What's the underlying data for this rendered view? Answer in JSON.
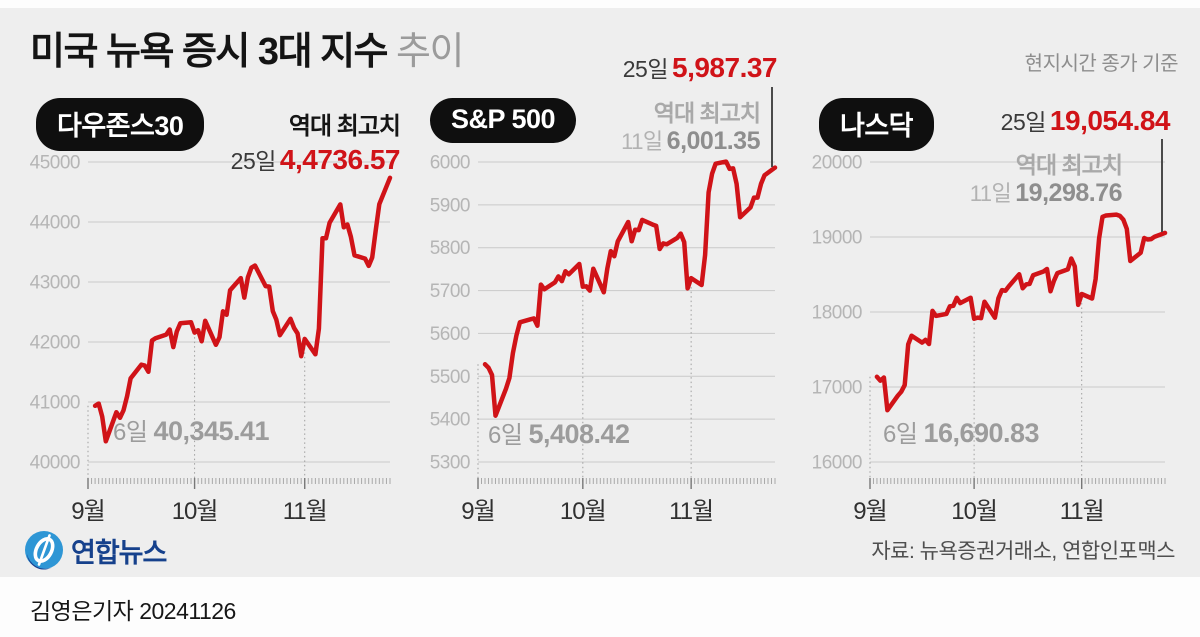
{
  "header": {
    "title_main": "미국 뉴욕 증시 3대 지수",
    "title_sub": "추이",
    "note": "현지시간 종가 기준"
  },
  "footer": {
    "logo_text": "연합뉴스",
    "source": "자료: 뉴욕증권거래소, 연합인포맥스",
    "byline": "김영은기자 20241126"
  },
  "colors": {
    "accent_red": "#d01318",
    "panel_bg": "#eeeeee",
    "grid_line": "#c9c9c9",
    "dotted_line": "#9f9f9f",
    "axis_label": "#b5b5b5",
    "month_label": "#303030",
    "logo_blue": "#2e96d5",
    "logo_navy": "#1b3e8f"
  },
  "chart_data": [
    {
      "type": "line",
      "name": "dow-jones-30",
      "label": "다우존스30",
      "ylim": [
        40000,
        45000
      ],
      "y_ticks": [
        45000,
        44000,
        43000,
        42000,
        41000,
        40000
      ],
      "x_axis": {
        "labels": [
          "9월",
          "10월",
          "11월"
        ],
        "label_days": [
          0,
          30,
          61
        ],
        "domain_days": [
          0,
          85
        ]
      },
      "days": [
        2,
        3,
        4,
        5,
        8,
        9,
        10,
        11,
        12,
        15,
        16,
        17,
        18,
        19,
        22,
        23,
        24,
        25,
        26,
        29,
        30,
        31,
        32,
        33,
        36,
        37,
        38,
        39,
        40,
        43,
        44,
        45,
        46,
        47,
        50,
        51,
        52,
        53,
        54,
        57,
        58,
        59,
        60,
        61,
        64,
        65,
        66,
        67,
        68,
        71,
        72,
        73,
        74,
        75,
        78,
        79,
        80,
        81,
        82,
        85
      ],
      "values": [
        40937,
        40974,
        40756,
        40345,
        40830,
        40737,
        40861,
        41097,
        41394,
        41622,
        41606,
        41503,
        42025,
        42063,
        42124,
        42208,
        41915,
        42175,
        42313,
        42330,
        42157,
        42197,
        42012,
        42353,
        41954,
        42080,
        42512,
        42454,
        42864,
        43065,
        42740,
        43078,
        43239,
        43275,
        42932,
        42924,
        42515,
        42374,
        42114,
        42387,
        42233,
        42142,
        41763,
        42052,
        41795,
        42222,
        43730,
        43729,
        43989,
        44294,
        43911,
        43958,
        43751,
        43445,
        43390,
        43269,
        43408,
        43870,
        44297,
        44737
      ],
      "annotations": {
        "latest_label": "역대 최고치",
        "latest": {
          "prefix": "25일",
          "value": "4,4736.57"
        },
        "low": {
          "prefix": "6일",
          "value": "40,345.41"
        }
      }
    },
    {
      "type": "line",
      "name": "sp-500",
      "label": "S&P 500",
      "ylim": [
        5300,
        6000
      ],
      "y_ticks": [
        6000,
        5900,
        5800,
        5700,
        5600,
        5500,
        5400,
        5300
      ],
      "x_axis": {
        "labels": [
          "9월",
          "10월",
          "11월"
        ],
        "label_days": [
          0,
          30,
          61
        ],
        "domain_days": [
          0,
          85
        ]
      },
      "days": [
        2,
        3,
        4,
        5,
        8,
        9,
        10,
        11,
        12,
        15,
        16,
        17,
        18,
        19,
        22,
        23,
        24,
        25,
        26,
        29,
        30,
        31,
        32,
        33,
        36,
        37,
        38,
        39,
        40,
        43,
        44,
        45,
        46,
        47,
        50,
        51,
        52,
        53,
        54,
        57,
        58,
        59,
        60,
        61,
        64,
        65,
        66,
        67,
        68,
        71,
        72,
        73,
        74,
        75,
        78,
        79,
        80,
        81,
        82,
        85
      ],
      "values": [
        5528,
        5520,
        5503,
        5408,
        5471,
        5496,
        5554,
        5595,
        5626,
        5633,
        5635,
        5618,
        5714,
        5703,
        5719,
        5733,
        5722,
        5745,
        5738,
        5762,
        5709,
        5710,
        5700,
        5751,
        5696,
        5751,
        5792,
        5780,
        5815,
        5860,
        5815,
        5842,
        5841,
        5865,
        5854,
        5851,
        5797,
        5810,
        5808,
        5823,
        5833,
        5813,
        5705,
        5729,
        5713,
        5783,
        5929,
        5973,
        5996,
        6001,
        5984,
        5985,
        5949,
        5871,
        5894,
        5917,
        5917,
        5949,
        5969,
        5987
      ],
      "annotations": {
        "latest": {
          "prefix": "25일",
          "value": "5,987.37"
        },
        "record": {
          "label": "역대 최고치",
          "prefix": "11일",
          "value": "6,001.35"
        },
        "low": {
          "prefix": "6일",
          "value": "5,408.42"
        }
      }
    },
    {
      "type": "line",
      "name": "nasdaq",
      "label": "나스닥",
      "ylim": [
        16000,
        20000
      ],
      "y_ticks": [
        20000,
        19000,
        18000,
        17000,
        16000
      ],
      "x_axis": {
        "labels": [
          "9월",
          "10월",
          "11월"
        ],
        "label_days": [
          0,
          30,
          61
        ],
        "domain_days": [
          0,
          85
        ]
      },
      "days": [
        2,
        3,
        4,
        5,
        8,
        9,
        10,
        11,
        12,
        15,
        16,
        17,
        18,
        19,
        22,
        23,
        24,
        25,
        26,
        29,
        30,
        31,
        32,
        33,
        36,
        37,
        38,
        39,
        40,
        43,
        44,
        45,
        46,
        47,
        50,
        51,
        52,
        53,
        54,
        57,
        58,
        59,
        60,
        61,
        64,
        65,
        66,
        67,
        68,
        71,
        72,
        73,
        74,
        75,
        78,
        79,
        80,
        81,
        82,
        85
      ],
      "values": [
        17136,
        17084,
        17127,
        16691,
        16884,
        16936,
        17025,
        17570,
        17684,
        17592,
        17628,
        17573,
        18014,
        17948,
        17974,
        18074,
        18082,
        18190,
        18119,
        18189,
        17910,
        17925,
        17918,
        18138,
        17924,
        18182,
        18292,
        18282,
        18343,
        18503,
        18316,
        18368,
        18374,
        18490,
        18540,
        18573,
        18276,
        18415,
        18519,
        18568,
        18713,
        18608,
        18095,
        18240,
        18180,
        18439,
        18983,
        19269,
        19287,
        19299,
        19281,
        19230,
        19108,
        18680,
        18791,
        18987,
        18966,
        18972,
        19004,
        19055
      ],
      "annotations": {
        "latest": {
          "prefix": "25일",
          "value": "19,054.84"
        },
        "record": {
          "label": "역대 최고치",
          "prefix": "11일",
          "value": "19,298.76"
        },
        "low": {
          "prefix": "6일",
          "value": "16,690.83"
        }
      }
    }
  ]
}
